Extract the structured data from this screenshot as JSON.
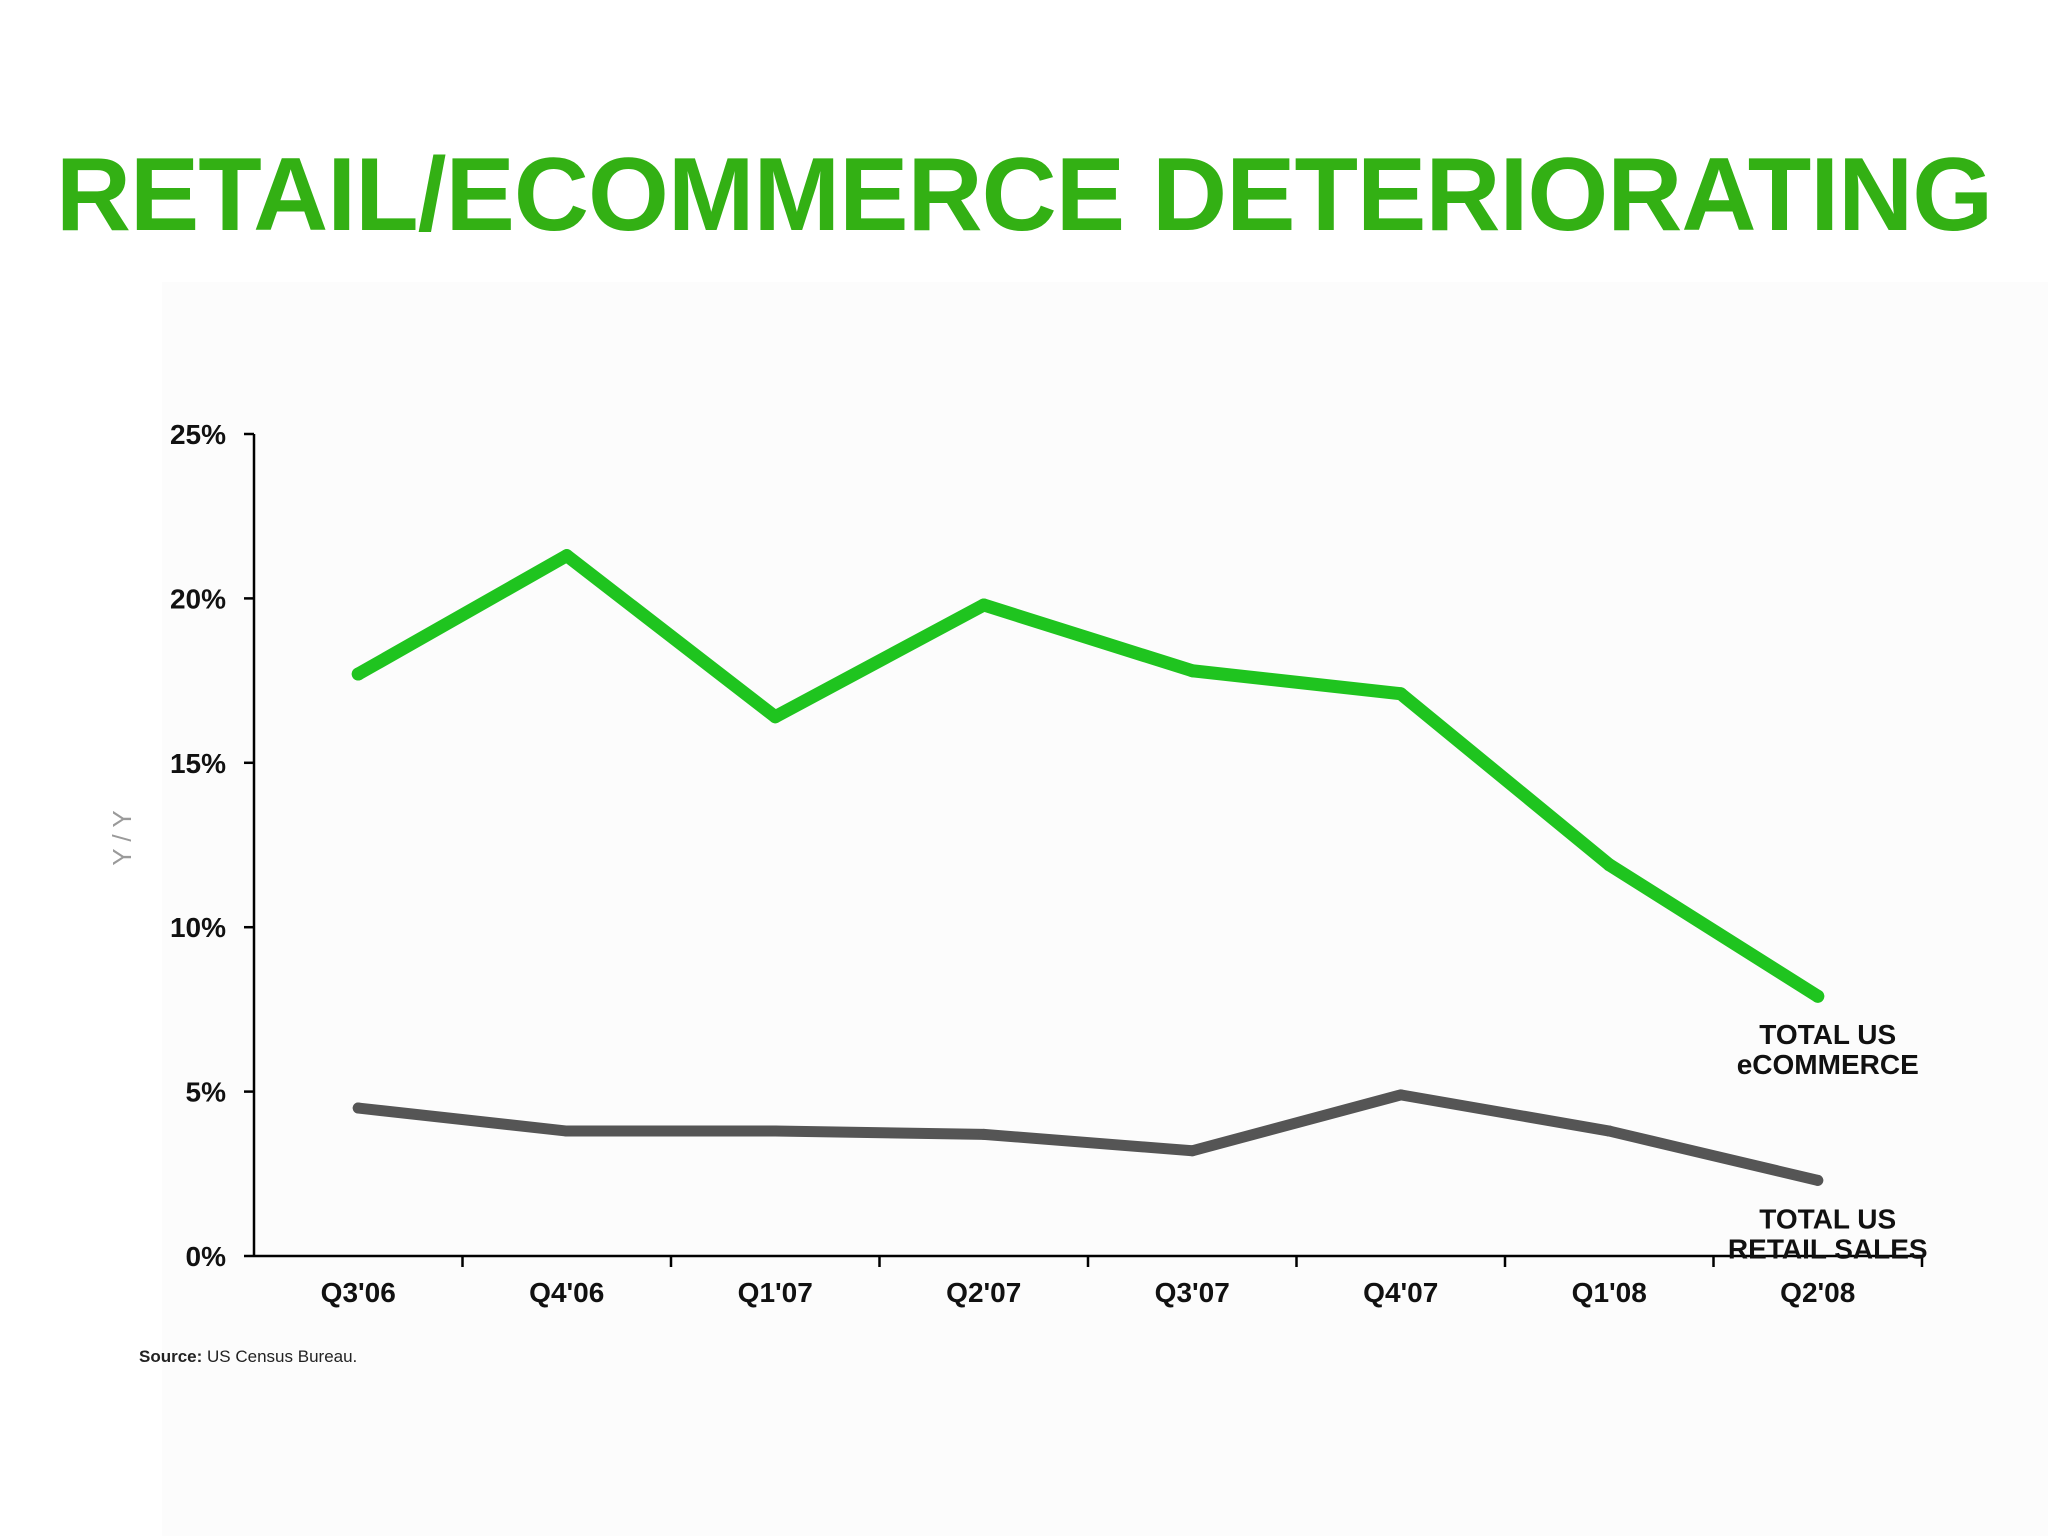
{
  "slide": {
    "title": "RETAIL/ECOMMERCE DETERIORATING"
  },
  "source": {
    "label": "Source:",
    "text": "US Census Bureau."
  },
  "colors": {
    "title": "#33b014",
    "ecommerce": "#1fc41f",
    "retail": "#555555",
    "axis": "#000000"
  },
  "chart_data": {
    "type": "line",
    "title": "",
    "xlabel": "",
    "ylabel": "Y / Y",
    "categories": [
      "Q3'06",
      "Q4'06",
      "Q1'07",
      "Q2'07",
      "Q3'07",
      "Q4'07",
      "Q1'08",
      "Q2'08"
    ],
    "ylim": [
      0,
      25
    ],
    "yticks": [
      "0%",
      "5%",
      "10%",
      "15%",
      "20%",
      "25%"
    ],
    "ytick_values": [
      0,
      5,
      10,
      15,
      20,
      25
    ],
    "grid": false,
    "legend": "none",
    "series": [
      {
        "name_lines": [
          "TOTAL US",
          "eCOMMERCE"
        ],
        "color": "#1fc41f",
        "values": [
          17.7,
          21.3,
          16.4,
          19.8,
          17.8,
          17.1,
          11.9,
          7.9
        ]
      },
      {
        "name_lines": [
          "TOTAL US",
          "RETAIL SALES"
        ],
        "color": "#555555",
        "values": [
          4.5,
          3.8,
          3.8,
          3.7,
          3.2,
          4.9,
          3.8,
          2.3
        ]
      }
    ]
  }
}
